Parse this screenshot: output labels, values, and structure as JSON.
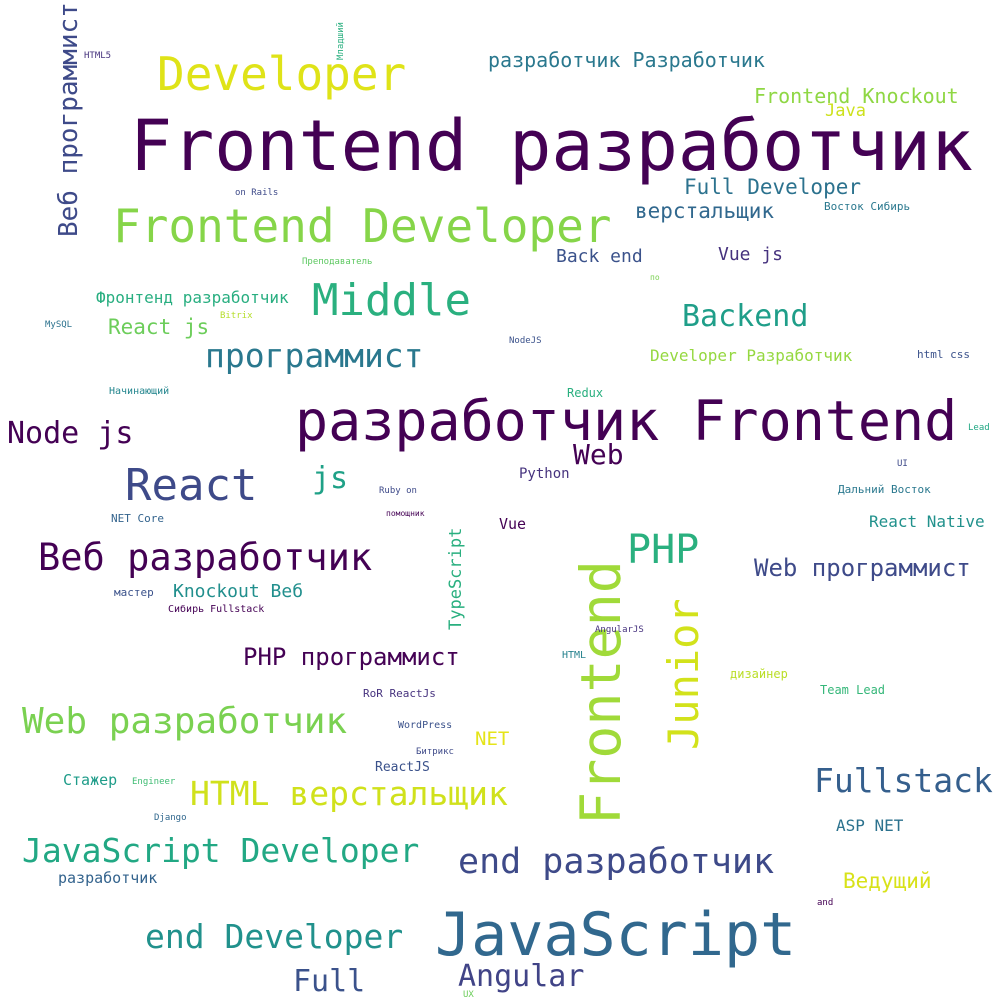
{
  "words": [
    {
      "text": "Frontend разработчик",
      "color": "#440154"
    },
    {
      "text": "разработчик Frontend",
      "color": "#440154"
    },
    {
      "text": "JavaScript",
      "color": "#31688e"
    },
    {
      "text": "Frontend",
      "color": "#a0da39"
    },
    {
      "text": "Developer",
      "color": "#dfe318"
    },
    {
      "text": "Frontend Developer",
      "color": "#86d549"
    },
    {
      "text": "Middle",
      "color": "#2ab07f"
    },
    {
      "text": "Junior",
      "color": "#d2e21b"
    },
    {
      "text": "React",
      "color": "#3e4a89"
    },
    {
      "text": "Веб разработчик",
      "color": "#440154"
    },
    {
      "text": "end разработчик",
      "color": "#3e4a89"
    },
    {
      "text": "Web разработчик",
      "color": "#7ad151"
    },
    {
      "text": "PHP",
      "color": "#2ab07f"
    },
    {
      "text": "программист",
      "color": "#2a788e"
    },
    {
      "text": "Fullstack",
      "color": "#355f8d"
    },
    {
      "text": "JavaScript Developer",
      "color": "#22a884"
    },
    {
      "text": "HTML верстальщик",
      "color": "#d0e11c"
    },
    {
      "text": "end Developer",
      "color": "#21918c"
    },
    {
      "text": "Веб программист",
      "color": "#3e4a89"
    },
    {
      "text": "Node js",
      "color": "#440154"
    },
    {
      "text": "Backend",
      "color": "#1f9e89"
    },
    {
      "text": "Angular",
      "color": "#414487"
    },
    {
      "text": "Full",
      "color": "#3b528b"
    },
    {
      "text": "Web программист",
      "color": "#3e4a89"
    },
    {
      "text": "PHP программист",
      "color": "#440154"
    },
    {
      "text": "js",
      "color": "#1fa187"
    },
    {
      "text": "Web",
      "color": "#440154"
    },
    {
      "text": "разработчик Разработчик",
      "color": "#2a788e"
    },
    {
      "text": "Frontend Knockout",
      "color": "#8fd744"
    },
    {
      "text": "Full Developer",
      "color": "#2c728e"
    },
    {
      "text": "верстальщик",
      "color": "#31688e"
    },
    {
      "text": "React js",
      "color": "#6ccd5a"
    },
    {
      "text": "Фронтенд разработчик",
      "color": "#28ae80"
    },
    {
      "text": "Knockout Веб",
      "color": "#218f8d"
    },
    {
      "text": "Back end",
      "color": "#3b528b"
    },
    {
      "text": "Vue js",
      "color": "#46327e"
    },
    {
      "text": "Developer Разработчик",
      "color": "#95d840"
    },
    {
      "text": "React Native",
      "color": "#21918c"
    },
    {
      "text": "Ведущий",
      "color": "#d8e219"
    },
    {
      "text": "TypeScript",
      "color": "#29af7f"
    },
    {
      "text": "ASP NET",
      "color": "#2c728e"
    },
    {
      "text": "NET",
      "color": "#e5e419"
    },
    {
      "text": "Стажер",
      "color": "#1e9c89"
    },
    {
      "text": "разработчик",
      "color": "#33638d"
    },
    {
      "text": "Python",
      "color": "#46337e"
    },
    {
      "text": "Java",
      "color": "#cde11d"
    },
    {
      "text": "Vue",
      "color": "#440154"
    },
    {
      "text": "ReactJS",
      "color": "#3b528b"
    },
    {
      "text": "Восток Сибирь",
      "color": "#2a788e"
    },
    {
      "text": "Дальний Восток",
      "color": "#2a788e"
    },
    {
      "text": "html css",
      "color": "#3b528b"
    },
    {
      "text": "Team Lead",
      "color": "#35b779"
    },
    {
      "text": "дизайнер",
      "color": "#bade28"
    },
    {
      "text": "Redux",
      "color": "#29af7f"
    },
    {
      "text": "Начинающий",
      "color": "#24868e"
    },
    {
      "text": "NET Core",
      "color": "#33638d"
    },
    {
      "text": "мастер",
      "color": "#3b528b"
    },
    {
      "text": "Сибирь Fullstack",
      "color": "#440154"
    },
    {
      "text": "RoR ReactJs",
      "color": "#46327e"
    },
    {
      "text": "HTML",
      "color": "#26828e"
    },
    {
      "text": "WordPress",
      "color": "#3b528b"
    },
    {
      "text": "Битрикс",
      "color": "#3e4a89"
    },
    {
      "text": "Engineer",
      "color": "#3fbc73"
    },
    {
      "text": "Django",
      "color": "#31688e"
    },
    {
      "text": "AngularJS",
      "color": "#46327e"
    },
    {
      "text": "Ruby on",
      "color": "#3e4a89"
    },
    {
      "text": "помощник",
      "color": "#440154"
    },
    {
      "text": "NodeJS",
      "color": "#3b528b"
    },
    {
      "text": "MySQL",
      "color": "#2c728e"
    },
    {
      "text": "Bitrix",
      "color": "#b5de2b"
    },
    {
      "text": "Преподаватель",
      "color": "#5ec962"
    },
    {
      "text": "on Rails",
      "color": "#3e4a89"
    },
    {
      "text": "HTML5",
      "color": "#46337e"
    },
    {
      "text": "Младший",
      "color": "#29af7f"
    },
    {
      "text": "по",
      "color": "#7ad151"
    },
    {
      "text": "Lead",
      "color": "#22a884"
    },
    {
      "text": "UI",
      "color": "#3e4a89"
    },
    {
      "text": "and",
      "color": "#440154"
    },
    {
      "text": "UX",
      "color": "#6ccd5a"
    }
  ]
}
